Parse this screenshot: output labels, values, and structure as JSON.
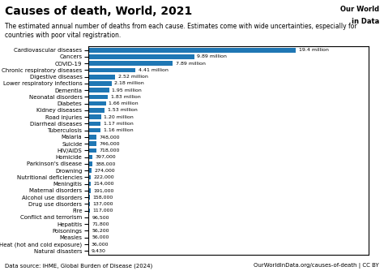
{
  "chart_data": {
    "type": "bar",
    "orientation": "horizontal",
    "title": "Causes of death, World, 2021",
    "subtitle": "The estimated annual number of deaths from each cause. Estimates come with wide uncertainties, especially for\ncountries with poor vital registration.",
    "annotations": [
      "Data source: IHME, Global Burden of Disease (2024)",
      "OurWorldInData.org/causes-of-death | CC BY",
      "Our World",
      "in Data"
    ],
    "categories": [
      "Cardiovascular diseases",
      "Cancers",
      "COVID-19",
      "Chronic respiratory diseases",
      "Digestive diseases",
      "Lower respiratory infections",
      "Dementia",
      "Neonatal disorders",
      "Diabetes",
      "Kidney diseases",
      "Road injuries",
      "Diarrheal diseases",
      "Tuberculosis",
      "Malaria",
      "Suicide",
      "HIV/AIDS",
      "Homicide",
      "Parkinson's disease",
      "Drowning",
      "Nutritional deficiencies",
      "Meningitis",
      "Maternal disorders",
      "Alcohol use disorders",
      "Drug use disorders",
      "Fire",
      "Conflict and terrorism",
      "Hepatitis",
      "Poisonings",
      "Measles",
      "Heat (hot and cold exposure)",
      "Natural disasters"
    ],
    "values": [
      19400000,
      9890000,
      7890000,
      4410000,
      2520000,
      2180000,
      1950000,
      1830000,
      1660000,
      1530000,
      1200000,
      1170000,
      1160000,
      748000,
      746000,
      718000,
      397000,
      388000,
      274000,
      222000,
      214000,
      191000,
      158000,
      137000,
      117000,
      96500,
      71800,
      56200,
      56000,
      36000,
      9430
    ],
    "value_labels": [
      "19.4 million",
      "9.89 million",
      "7.89 million",
      "4.41 million",
      "2.52 million",
      "2.18 million",
      "1.95 million",
      "1.83 million",
      "1.66 million",
      "1.53 million",
      "1.20 million",
      "1.17 million",
      "1.16 million",
      "748,000",
      "746,000",
      "718,000",
      "397,000",
      "388,000",
      "274,000",
      "222,000",
      "214,000",
      "191,000",
      "158,000",
      "137,000",
      "117,000",
      "96,500",
      "71,800",
      "56,200",
      "56,000",
      "36,000",
      "9,430"
    ],
    "data_labels": true,
    "xlim": [
      0,
      26190000
    ],
    "xticks": [],
    "tick_labels": "y",
    "grid": false
  }
}
